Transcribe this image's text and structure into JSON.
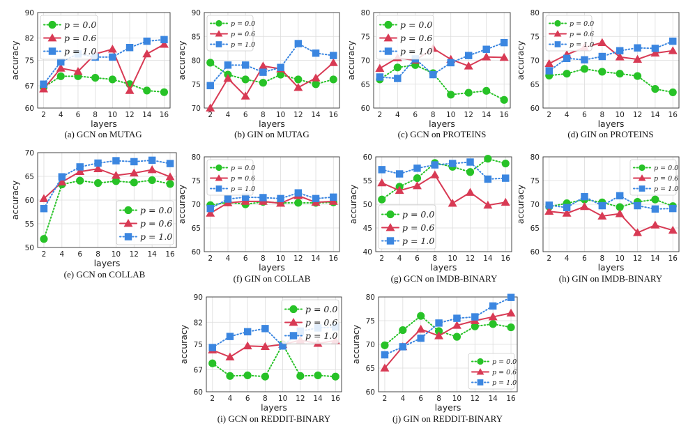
{
  "figure": {
    "ylabel": "accuracy",
    "xlabel": "layers"
  },
  "series_style": [
    {
      "name": "p = 0.0",
      "color": "#27c227",
      "marker": "circle"
    },
    {
      "name": "p = 0.6",
      "color": "#d83a54",
      "marker": "triangle"
    },
    {
      "name": "p = 1.0",
      "color": "#3b86e0",
      "marker": "square"
    }
  ],
  "chart_data": [
    {
      "id": "a",
      "caption": "(a) GCN on MUTAG",
      "type": "line",
      "xlabel": "layers",
      "ylabel": "accuracy",
      "x": [
        2,
        4,
        6,
        8,
        10,
        12,
        14,
        16
      ],
      "xticks": [
        "2",
        "4",
        "6",
        "8",
        "10",
        "12",
        "14",
        "16"
      ],
      "ylim": [
        60,
        90
      ],
      "yticks": [
        60,
        67,
        75,
        82,
        90
      ],
      "ytick_labels": [
        "60",
        "67",
        "75",
        "82",
        "90"
      ],
      "legend": "top-left",
      "series": [
        {
          "name": "p = 0.0",
          "values": [
            66.5,
            70.0,
            70.0,
            69.5,
            69.0,
            67.5,
            65.5,
            65.0
          ]
        },
        {
          "name": "p = 0.6",
          "values": [
            66.0,
            72.5,
            71.5,
            77.0,
            78.5,
            65.5,
            77.0,
            80.0
          ]
        },
        {
          "name": "p = 1.0",
          "values": [
            67.5,
            74.5,
            77.0,
            76.0,
            76.0,
            79.0,
            81.0,
            81.5
          ]
        }
      ]
    },
    {
      "id": "b",
      "caption": "(b) GIN on MUTAG",
      "type": "line",
      "xlabel": "layers",
      "ylabel": "accuracy",
      "x": [
        2,
        4,
        6,
        8,
        10,
        12,
        14,
        16
      ],
      "xticks": [
        "2",
        "4",
        "6",
        "8",
        "10",
        "12",
        "14",
        "16"
      ],
      "ylim": [
        70,
        90
      ],
      "yticks": [
        70,
        75,
        80,
        85,
        90
      ],
      "ytick_labels": [
        "70",
        "75",
        "80",
        "85",
        "90"
      ],
      "legend": "top-left",
      "series": [
        {
          "name": "p = 0.0",
          "values": [
            79.5,
            77.0,
            76.0,
            75.3,
            77.0,
            76.0,
            75.0,
            76.0
          ]
        },
        {
          "name": "p = 0.6",
          "values": [
            70.0,
            76.2,
            72.5,
            78.8,
            78.2,
            74.3,
            76.3,
            79.5
          ]
        },
        {
          "name": "p = 1.0",
          "values": [
            74.7,
            79.0,
            79.0,
            77.5,
            78.5,
            83.5,
            81.5,
            81.0
          ]
        }
      ]
    },
    {
      "id": "c",
      "caption": "(c) GCN on PROTEINS",
      "type": "line",
      "xlabel": "layers",
      "ylabel": "accuracy",
      "x": [
        2,
        4,
        6,
        8,
        10,
        12,
        14,
        16
      ],
      "xticks": [
        "2",
        "4",
        "6",
        "8",
        "10",
        "12",
        "14",
        "16"
      ],
      "ylim": [
        60,
        80
      ],
      "yticks": [
        60,
        65,
        70,
        75,
        80
      ],
      "ytick_labels": [
        "60",
        "65",
        "70",
        "75",
        "80"
      ],
      "legend": "top-left",
      "series": [
        {
          "name": "p = 0.0",
          "values": [
            66.0,
            68.5,
            69.0,
            67.3,
            62.8,
            63.2,
            63.6,
            61.7
          ]
        },
        {
          "name": "p = 0.6",
          "values": [
            68.3,
            70.5,
            70.0,
            72.5,
            70.2,
            68.8,
            70.7,
            70.6
          ]
        },
        {
          "name": "p = 1.0",
          "values": [
            66.5,
            66.2,
            70.3,
            67.0,
            69.5,
            71.0,
            72.3,
            73.7
          ]
        }
      ]
    },
    {
      "id": "d",
      "caption": "(d) GIN on PROTEINS",
      "type": "line",
      "xlabel": "layers",
      "ylabel": "accuracy",
      "x": [
        2,
        4,
        6,
        8,
        10,
        12,
        14,
        16
      ],
      "xticks": [
        "2",
        "4",
        "6",
        "8",
        "10",
        "12",
        "14",
        "16"
      ],
      "ylim": [
        60,
        80
      ],
      "yticks": [
        60,
        65,
        70,
        75,
        80
      ],
      "ytick_labels": [
        "60",
        "65",
        "70",
        "75",
        "80"
      ],
      "legend": "top-left",
      "series": [
        {
          "name": "p = 0.0",
          "values": [
            66.8,
            67.2,
            68.2,
            67.6,
            67.2,
            66.7,
            64.0,
            63.3
          ]
        },
        {
          "name": "p = 0.6",
          "values": [
            69.3,
            71.2,
            72.7,
            73.7,
            70.7,
            70.2,
            71.5,
            72.0
          ]
        },
        {
          "name": "p = 1.0",
          "values": [
            67.8,
            70.4,
            70.1,
            70.8,
            72.0,
            72.6,
            72.5,
            74.0
          ]
        }
      ]
    },
    {
      "id": "e",
      "caption": "(e) GCN on COLLAB",
      "type": "line",
      "xlabel": "layers",
      "ylabel": "accuracy",
      "x": [
        2,
        4,
        6,
        8,
        10,
        12,
        14,
        16
      ],
      "xticks": [
        "2",
        "4",
        "6",
        "8",
        "10",
        "12",
        "14",
        "16"
      ],
      "ylim": [
        50,
        70
      ],
      "yticks": [
        50,
        55,
        60,
        65,
        70
      ],
      "ytick_labels": [
        "50",
        "55",
        "60",
        "65",
        "70"
      ],
      "legend": "bottom-right",
      "series": [
        {
          "name": "p = 0.0",
          "values": [
            51.8,
            63.3,
            64.1,
            63.6,
            64.0,
            63.7,
            64.2,
            63.4
          ]
        },
        {
          "name": "p = 0.6",
          "values": [
            60.3,
            63.8,
            66.0,
            66.6,
            65.2,
            65.7,
            66.4,
            64.9
          ]
        },
        {
          "name": "p = 1.0",
          "values": [
            58.2,
            64.9,
            67.0,
            67.8,
            68.3,
            68.1,
            68.4,
            67.7
          ]
        }
      ]
    },
    {
      "id": "f",
      "caption": "(f) GIN on COLLAB",
      "type": "line",
      "xlabel": "layers",
      "ylabel": "accuracy",
      "x": [
        2,
        4,
        6,
        8,
        10,
        12,
        14,
        16
      ],
      "xticks": [
        "2",
        "4",
        "6",
        "8",
        "10",
        "12",
        "14",
        "16"
      ],
      "ylim": [
        60,
        80
      ],
      "yticks": [
        60,
        65,
        70,
        75,
        80
      ],
      "ytick_labels": [
        "60",
        "65",
        "70",
        "75",
        "80"
      ],
      "legend": "top-left",
      "series": [
        {
          "name": "p = 0.0",
          "values": [
            69.8,
            70.4,
            70.0,
            70.5,
            70.3,
            70.3,
            70.3,
            70.4
          ]
        },
        {
          "name": "p = 0.6",
          "values": [
            68.1,
            70.3,
            70.6,
            70.6,
            70.2,
            71.8,
            70.4,
            70.6
          ]
        },
        {
          "name": "p = 1.0",
          "values": [
            69.1,
            71.1,
            71.5,
            71.4,
            71.2,
            72.4,
            71.2,
            71.5
          ]
        }
      ]
    },
    {
      "id": "g",
      "caption": "(g) GCN on IMDB-BINARY",
      "type": "line",
      "xlabel": "layers",
      "ylabel": "accuracy",
      "x": [
        2,
        4,
        6,
        8,
        10,
        12,
        14,
        16
      ],
      "xticks": [
        "2",
        "4",
        "6",
        "8",
        "10",
        "12",
        "14",
        "16"
      ],
      "ylim": [
        40,
        60
      ],
      "yticks": [
        40,
        45,
        50,
        55,
        60
      ],
      "ytick_labels": [
        "40",
        "45",
        "50",
        "55",
        "60"
      ],
      "legend": "bottom-left",
      "series": [
        {
          "name": "p = 0.0",
          "values": [
            51.0,
            53.7,
            55.5,
            58.7,
            57.9,
            56.8,
            59.6,
            58.6
          ]
        },
        {
          "name": "p = 0.6",
          "values": [
            54.5,
            52.9,
            53.9,
            56.2,
            50.2,
            52.5,
            49.8,
            50.4
          ]
        },
        {
          "name": "p = 1.0",
          "values": [
            57.3,
            56.4,
            57.6,
            58.3,
            58.6,
            58.9,
            55.3,
            55.5
          ]
        }
      ]
    },
    {
      "id": "h",
      "caption": "(h) GIN on IMDB-BINARY",
      "type": "line",
      "xlabel": "layers",
      "ylabel": "accuracy",
      "x": [
        2,
        4,
        6,
        8,
        10,
        12,
        14,
        16
      ],
      "xticks": [
        "2",
        "4",
        "6",
        "8",
        "10",
        "12",
        "14",
        "16"
      ],
      "ylim": [
        60,
        80
      ],
      "yticks": [
        60,
        65,
        70,
        75,
        80
      ],
      "ytick_labels": [
        "60",
        "65",
        "70",
        "75",
        "80"
      ],
      "legend": "top-right",
      "series": [
        {
          "name": "p = 0.0",
          "values": [
            69.5,
            70.2,
            71.0,
            70.4,
            69.4,
            70.5,
            71.0,
            69.6
          ]
        },
        {
          "name": "p = 0.6",
          "values": [
            68.5,
            68.1,
            69.5,
            67.5,
            68.0,
            64.0,
            65.6,
            64.5
          ]
        },
        {
          "name": "p = 1.0",
          "values": [
            69.8,
            69.3,
            71.6,
            69.7,
            71.8,
            69.7,
            69.0,
            69.1
          ]
        }
      ]
    },
    {
      "id": "i",
      "caption": "(i) GCN on REDDIT-BINARY",
      "type": "line",
      "xlabel": "layers",
      "ylabel": "accuracy",
      "x": [
        2,
        4,
        6,
        8,
        10,
        12,
        14,
        16
      ],
      "xticks": [
        "2",
        "4",
        "6",
        "8",
        "10",
        "12",
        "14",
        "16"
      ],
      "ylim": [
        60,
        90
      ],
      "yticks": [
        60,
        67,
        75,
        82,
        90
      ],
      "ytick_labels": [
        "60",
        "67",
        "75",
        "82",
        "90"
      ],
      "legend": "top-right",
      "series": [
        {
          "name": "p = 0.0",
          "values": [
            69.0,
            65.0,
            65.2,
            64.8,
            75.0,
            65.0,
            65.2,
            64.8
          ]
        },
        {
          "name": "p = 0.6",
          "values": [
            73.2,
            71.0,
            74.5,
            74.3,
            75.0,
            76.3,
            75.3,
            76.2
          ]
        },
        {
          "name": "p = 1.0",
          "values": [
            74.0,
            77.5,
            79.0,
            80.0,
            74.5,
            79.2,
            80.2,
            80.5
          ]
        }
      ]
    },
    {
      "id": "j",
      "caption": "(j) GIN on REDDIT-BINARY",
      "type": "line",
      "xlabel": "layers",
      "ylabel": "accuracy",
      "x": [
        2,
        4,
        6,
        8,
        10,
        12,
        14,
        16
      ],
      "xticks": [
        "2",
        "4",
        "6",
        "8",
        "10",
        "12",
        "14",
        "16"
      ],
      "ylim": [
        60,
        80
      ],
      "yticks": [
        60,
        65,
        70,
        75,
        80
      ],
      "ytick_labels": [
        "60",
        "65",
        "70",
        "75",
        "80"
      ],
      "legend": "bottom-right",
      "series": [
        {
          "name": "p = 0.0",
          "values": [
            69.8,
            73.0,
            76.0,
            72.8,
            71.6,
            73.8,
            74.3,
            73.6
          ]
        },
        {
          "name": "p = 0.6",
          "values": [
            65.0,
            69.5,
            73.2,
            71.8,
            74.0,
            75.0,
            75.8,
            76.6
          ]
        },
        {
          "name": "p = 1.0",
          "values": [
            67.8,
            69.5,
            71.3,
            74.5,
            75.5,
            75.8,
            78.1,
            79.9
          ]
        }
      ]
    }
  ]
}
